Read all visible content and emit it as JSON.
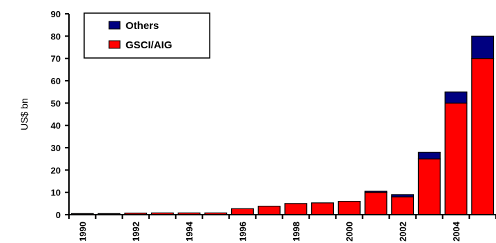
{
  "chart_data": {
    "type": "bar",
    "stacked": true,
    "title": "",
    "xlabel": "",
    "ylabel": "US$ bn",
    "ylim": [
      0,
      90
    ],
    "yticks": [
      0,
      10,
      20,
      30,
      40,
      50,
      60,
      70,
      80,
      90
    ],
    "categories": [
      "1990",
      "1991",
      "1992",
      "1993",
      "1994",
      "1995",
      "1996",
      "1997",
      "1998",
      "1999",
      "2000",
      "2001",
      "2002",
      "2003",
      "2004",
      "2005"
    ],
    "x_tick_labels": [
      "1990",
      "",
      "1992",
      "",
      "1994",
      "",
      "1996",
      "",
      "1998",
      "",
      "2000",
      "",
      "2002",
      "",
      "2004",
      ""
    ],
    "series": [
      {
        "name": "GSCI/AIG",
        "color": "#ff0000",
        "values": [
          0.5,
          0.5,
          0.7,
          0.8,
          0.8,
          0.8,
          2.7,
          3.8,
          5.0,
          5.3,
          6.0,
          10.0,
          8.0,
          25.0,
          50.0,
          70.0
        ]
      },
      {
        "name": "Others",
        "color": "#000080",
        "values": [
          0,
          0,
          0,
          0,
          0,
          0,
          0,
          0,
          0,
          0,
          0,
          0.5,
          1.0,
          3.0,
          5.0,
          10.0
        ]
      }
    ],
    "legend": {
      "placement": "top-left",
      "entries": [
        "Others",
        "GSCI/AIG"
      ]
    },
    "grid": false
  }
}
